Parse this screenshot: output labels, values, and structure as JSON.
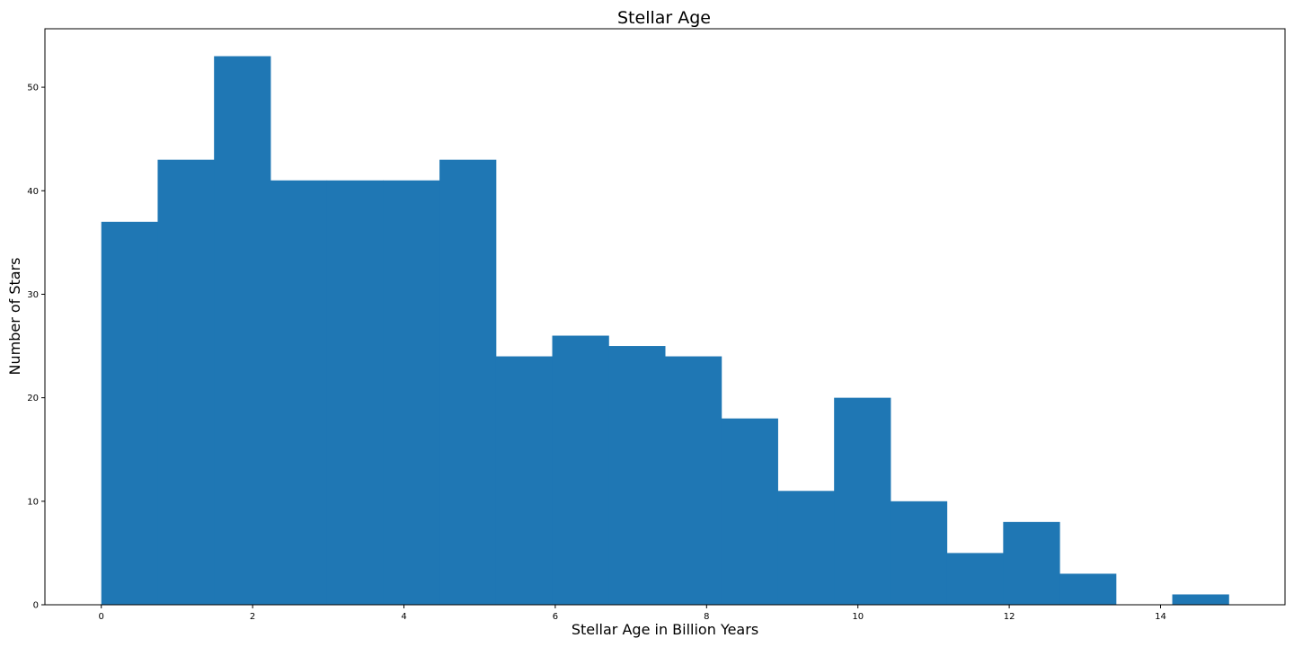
{
  "chart_data": {
    "type": "bar",
    "title": "Stellar Age",
    "xlabel": "Stellar Age in Billion Years",
    "ylabel": "Number of Stars",
    "bin_edges": [
      0.0,
      0.745,
      1.49,
      2.235,
      2.98,
      3.725,
      4.47,
      5.215,
      5.96,
      6.705,
      7.45,
      8.195,
      8.94,
      9.685,
      10.43,
      11.175,
      11.92,
      12.665,
      13.41,
      14.155,
      14.9
    ],
    "values": [
      37,
      43,
      53,
      41,
      41,
      41,
      43,
      24,
      26,
      25,
      24,
      18,
      11,
      20,
      10,
      5,
      8,
      3,
      0,
      1
    ],
    "xlim": [
      -0.745,
      15.645
    ],
    "ylim": [
      0,
      55.65
    ],
    "xticks": [
      0,
      2,
      4,
      6,
      8,
      10,
      12,
      14
    ],
    "yticks": [
      0,
      10,
      20,
      30,
      40,
      50
    ],
    "grid": false,
    "bar_color": "#1f77b4"
  }
}
